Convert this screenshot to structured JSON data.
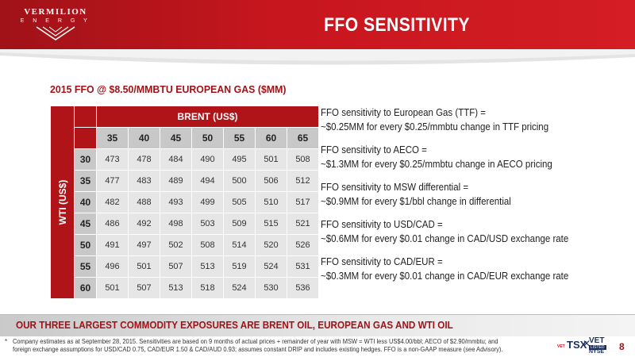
{
  "header": {
    "logo_main": "VERMILION",
    "logo_sub": "E N E R G Y",
    "title": "FFO SENSITIVITY"
  },
  "subtitle": "2015 FFO @ $8.50/MMBTU EUROPEAN GAS ($MM)",
  "table": {
    "row_axis_label": "WTI (US$)",
    "col_axis_label": "BRENT (US$)",
    "columns": [
      "35",
      "40",
      "45",
      "50",
      "55",
      "60",
      "65"
    ],
    "rows": [
      {
        "wti": "30",
        "values": [
          "473",
          "478",
          "484",
          "490",
          "495",
          "501",
          "508"
        ]
      },
      {
        "wti": "35",
        "values": [
          "477",
          "483",
          "489",
          "494",
          "500",
          "506",
          "512"
        ]
      },
      {
        "wti": "40",
        "values": [
          "482",
          "488",
          "493",
          "499",
          "505",
          "510",
          "517"
        ]
      },
      {
        "wti": "45",
        "values": [
          "486",
          "492",
          "498",
          "503",
          "509",
          "515",
          "521"
        ]
      },
      {
        "wti": "50",
        "values": [
          "491",
          "497",
          "502",
          "508",
          "514",
          "520",
          "526"
        ]
      },
      {
        "wti": "55",
        "values": [
          "496",
          "501",
          "507",
          "513",
          "519",
          "524",
          "531"
        ]
      },
      {
        "wti": "60",
        "values": [
          "501",
          "507",
          "513",
          "518",
          "524",
          "530",
          "536"
        ]
      }
    ]
  },
  "sensitivities": [
    {
      "line1": "FFO sensitivity to European Gas (TTF) =",
      "line2": "~$0.25MM for every $0.25/mmbtu change in TTF pricing"
    },
    {
      "line1": "FFO sensitivity to AECO =",
      "line2": "~$1.3MM for every $0.25/mmbtu change in AECO pricing"
    },
    {
      "line1": "FFO sensitivity to MSW differential =",
      "line2": "~$0.9MM for every $1/bbl change in differential"
    },
    {
      "line1": "FFO sensitivity to USD/CAD =",
      "line2": "~$0.6MM for every $0.01 change in CAD/USD exchange rate"
    },
    {
      "line1": "FFO sensitivity to CAD/EUR =",
      "line2": "~$0.3MM for every $0.01 change in CAD/EUR exchange rate"
    }
  ],
  "bottom_banner": "OUR THREE LARGEST COMMODITY EXPOSURES ARE BRENT OIL, EUROPEAN GAS AND WTI OIL",
  "footnote": {
    "marker": "*",
    "line1": "Company estimates as at September 28, 2015.  Sensitivities are based on 9 months of actual prices + remainder of year with MSW = WTI less US$4.00/bbl; AECO of $2.90/mmbtu; and",
    "line2": "foreign exchange assumptions for USD/CAD 0.75, CAD/EUR 1.50 & CAD/AUD 0.93; assumes constant DRIP and includes existing hedges.  FFO is a non-GAAP measure (see Advisory)."
  },
  "tickers": {
    "small": "VET",
    "tsx": "TSX",
    "vet": "VET",
    "listed": "LISTED",
    "nyse": "NYSE"
  },
  "page_number": "8",
  "colors": {
    "brand_red": "#c8161e",
    "dark_red": "#a01218",
    "table_header_gray": "#c8c8c8",
    "table_cell_gray": "#e6e6e6"
  }
}
